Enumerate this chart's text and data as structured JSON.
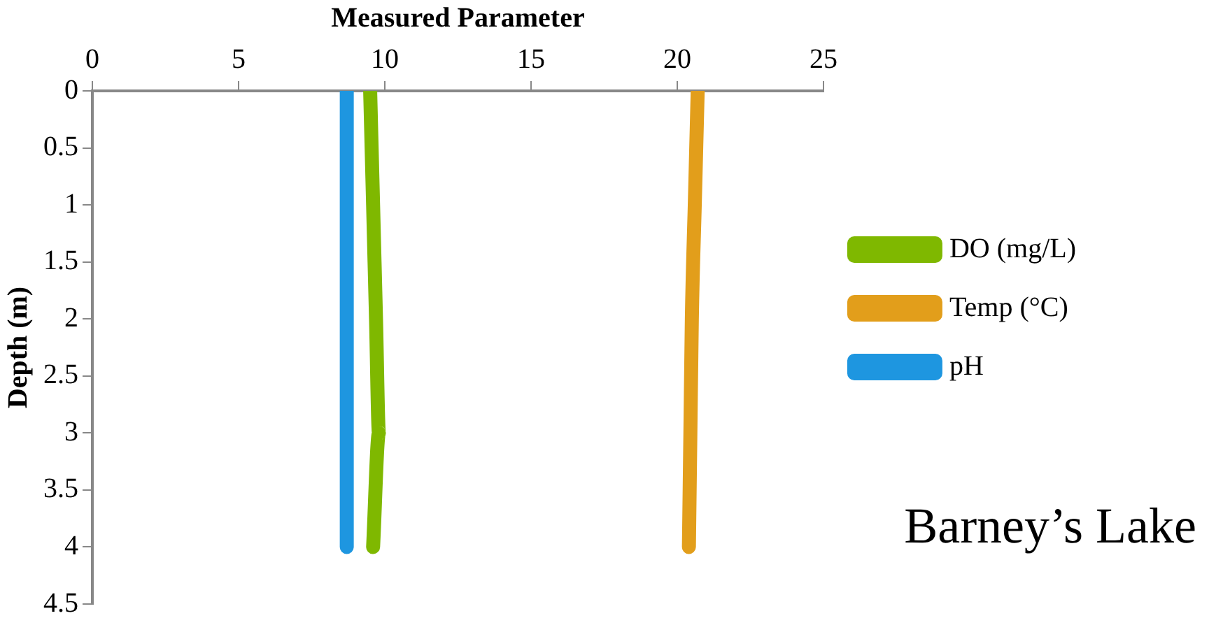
{
  "chart_data": {
    "type": "line",
    "xlabel": "Measured Parameter",
    "ylabel": "Depth (m)",
    "series": [
      {
        "name": "DO (mg/L)",
        "color": "#7fb800",
        "x": [
          9.5,
          9.6,
          9.7,
          9.8,
          9.6
        ],
        "values": [
          0,
          1,
          2,
          3,
          4
        ]
      },
      {
        "name": "Temp (°C)",
        "color": "#e29e1b",
        "x": [
          20.7,
          20.6,
          20.5,
          20.45,
          20.4
        ],
        "values": [
          0,
          1,
          2,
          3,
          4
        ]
      },
      {
        "name": "pH",
        "color": "#1e96e0",
        "x": [
          8.7,
          8.7,
          8.7,
          8.7,
          8.7
        ],
        "values": [
          0,
          1,
          2,
          3,
          4
        ]
      }
    ],
    "xlim": [
      0,
      25
    ],
    "xticks": [
      0,
      5,
      10,
      15,
      20,
      25
    ],
    "ylim": [
      4.5,
      0
    ],
    "yticks": [
      0,
      0.5,
      1,
      1.5,
      2,
      2.5,
      3,
      3.5,
      4,
      4.5
    ],
    "grid": false,
    "legend": "right",
    "marker": "none",
    "line_style": "solid",
    "annotations": [
      "Barney’s Lake"
    ]
  }
}
